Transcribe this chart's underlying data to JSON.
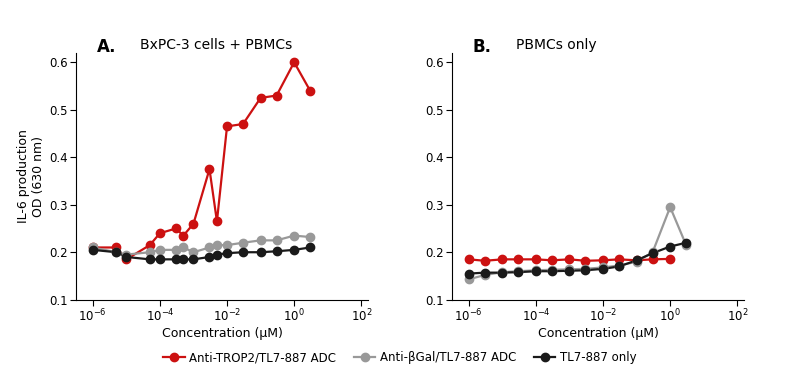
{
  "panel_A_title": "BxPC-3 cells + PBMCs",
  "panel_B_title": "PBMCs only",
  "xlabel": "Concentration (μM)",
  "ylabel": "IL-6 production\nOD (630 nm)",
  "ylim": [
    0.1,
    0.62
  ],
  "yticks": [
    0.1,
    0.2,
    0.3,
    0.4,
    0.5,
    0.6
  ],
  "label_A": "A.",
  "label_B": "B.",
  "red_color": "#cc1111",
  "gray_color": "#999999",
  "black_color": "#1a1a1a",
  "legend_labels": [
    "Anti-TROP2/TL7-887 ADC",
    "Anti-βGal/TL7-887 ADC",
    "TL7-887 only"
  ],
  "A_red_x": [
    1e-06,
    5e-06,
    1e-05,
    5e-05,
    0.0001,
    0.0003,
    0.0005,
    0.001,
    0.003,
    0.005,
    0.01,
    0.03,
    0.1,
    0.3,
    1.0,
    3.0
  ],
  "A_red_y": [
    0.21,
    0.21,
    0.185,
    0.215,
    0.24,
    0.25,
    0.235,
    0.26,
    0.375,
    0.265,
    0.465,
    0.47,
    0.525,
    0.53,
    0.6,
    0.54
  ],
  "A_gray_x": [
    1e-06,
    5e-06,
    1e-05,
    5e-05,
    0.0001,
    0.0003,
    0.0005,
    0.001,
    0.003,
    0.005,
    0.01,
    0.03,
    0.1,
    0.3,
    1.0,
    3.0
  ],
  "A_gray_y": [
    0.21,
    0.2,
    0.195,
    0.2,
    0.205,
    0.205,
    0.21,
    0.2,
    0.21,
    0.215,
    0.215,
    0.22,
    0.225,
    0.225,
    0.235,
    0.232
  ],
  "A_black_x": [
    1e-06,
    5e-06,
    1e-05,
    5e-05,
    0.0001,
    0.0003,
    0.0005,
    0.001,
    0.003,
    0.005,
    0.01,
    0.03,
    0.1,
    0.3,
    1.0,
    3.0
  ],
  "A_black_y": [
    0.205,
    0.2,
    0.19,
    0.185,
    0.185,
    0.185,
    0.185,
    0.185,
    0.19,
    0.195,
    0.198,
    0.2,
    0.2,
    0.202,
    0.205,
    0.21
  ],
  "B_red_x": [
    1e-06,
    3e-06,
    1e-05,
    3e-05,
    0.0001,
    0.0003,
    0.001,
    0.003,
    0.01,
    0.03,
    0.1,
    0.3,
    1.0
  ],
  "B_red_y": [
    0.185,
    0.182,
    0.185,
    0.185,
    0.185,
    0.183,
    0.185,
    0.182,
    0.183,
    0.185,
    0.183,
    0.185,
    0.186
  ],
  "B_gray_x": [
    1e-06,
    3e-06,
    1e-05,
    3e-05,
    0.0001,
    0.0003,
    0.001,
    0.003,
    0.01,
    0.03,
    0.1,
    0.3,
    1.0,
    3.0
  ],
  "B_gray_y": [
    0.143,
    0.152,
    0.158,
    0.16,
    0.162,
    0.163,
    0.164,
    0.165,
    0.168,
    0.172,
    0.18,
    0.2,
    0.295,
    0.215
  ],
  "B_black_x": [
    1e-06,
    3e-06,
    1e-05,
    3e-05,
    0.0001,
    0.0003,
    0.001,
    0.003,
    0.01,
    0.03,
    0.1,
    0.3,
    1.0,
    3.0
  ],
  "B_black_y": [
    0.155,
    0.157,
    0.157,
    0.158,
    0.16,
    0.16,
    0.161,
    0.162,
    0.165,
    0.17,
    0.183,
    0.198,
    0.212,
    0.22
  ],
  "marker_size": 6,
  "line_width": 1.6,
  "figure_bg": "#ffffff"
}
